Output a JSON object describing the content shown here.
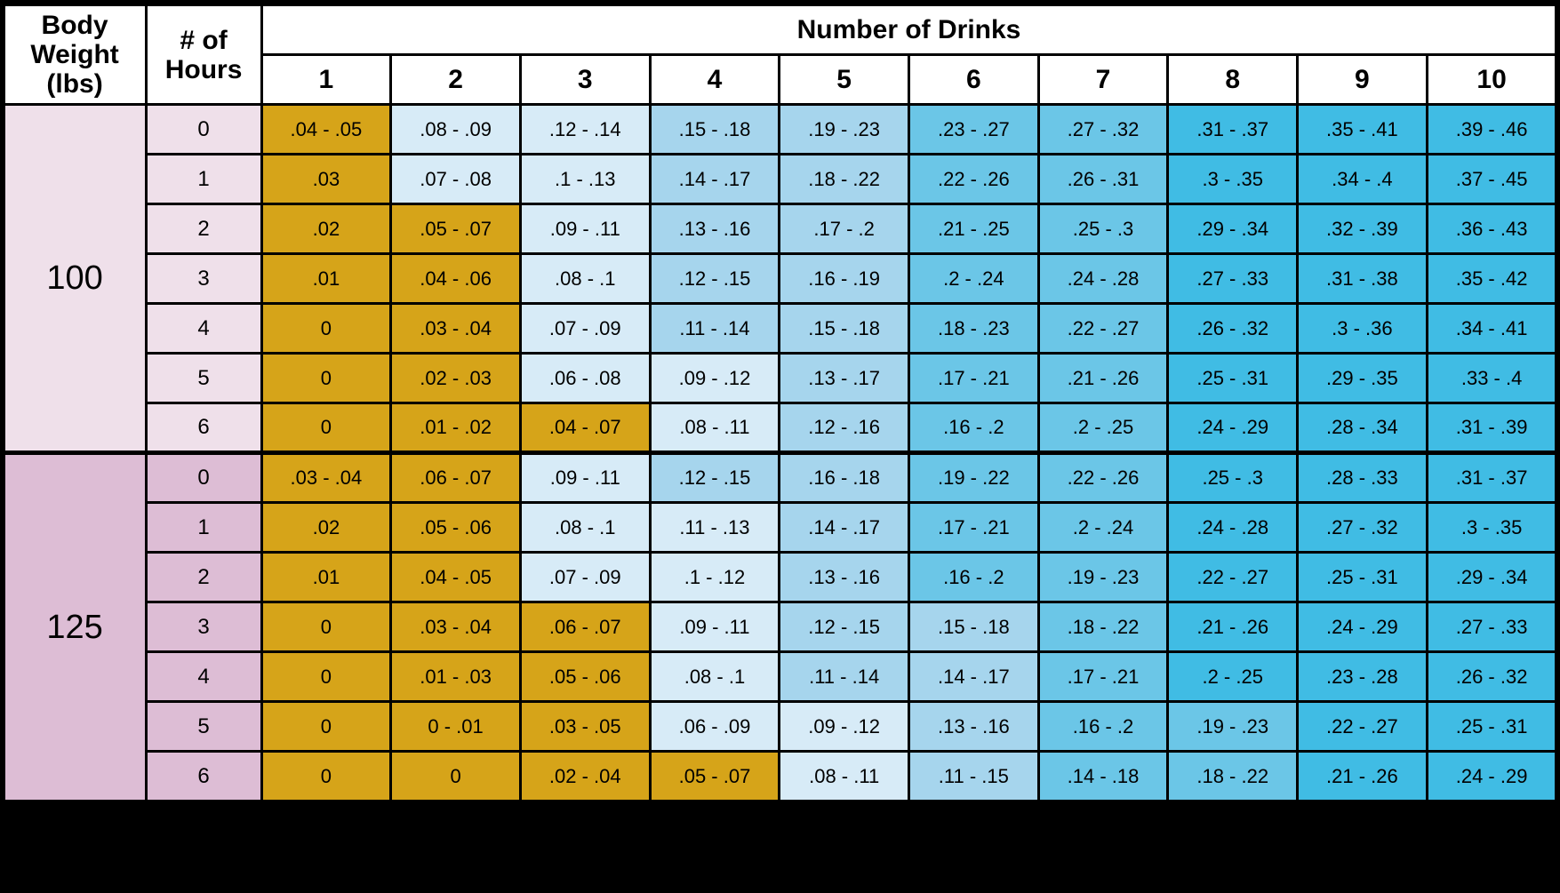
{
  "headers": {
    "body_weight": "Body\nWeight\n(lbs)",
    "hours": "# of\nHours",
    "drinks_title": "Number of Drinks",
    "drink_numbers": [
      "1",
      "2",
      "3",
      "4",
      "5",
      "6",
      "7",
      "8",
      "9",
      "10"
    ]
  },
  "colors": {
    "gold": "#d6a419",
    "blue1": "#d7ebf7",
    "blue2": "#a6d5ed",
    "blue3": "#6bc6e7",
    "blue4": "#40bce4",
    "pink1": "#efe0ea",
    "pink2": "#ddbdd5",
    "white": "#ffffff",
    "black": "#000000"
  },
  "groups": [
    {
      "weight": "100",
      "weight_bg_key": "pink1",
      "hours_bg_key": "pink1",
      "rows": [
        {
          "hours": "0",
          "cells": [
            {
              "v": ".04 - .05",
              "c": "gold"
            },
            {
              "v": ".08 - .09",
              "c": "blue1"
            },
            {
              "v": ".12 - .14",
              "c": "blue1"
            },
            {
              "v": ".15 - .18",
              "c": "blue2"
            },
            {
              "v": ".19 - .23",
              "c": "blue2"
            },
            {
              "v": ".23 - .27",
              "c": "blue3"
            },
            {
              "v": ".27 - .32",
              "c": "blue3"
            },
            {
              "v": ".31 - .37",
              "c": "blue4"
            },
            {
              "v": ".35 - .41",
              "c": "blue4"
            },
            {
              "v": ".39 - .46",
              "c": "blue4"
            }
          ]
        },
        {
          "hours": "1",
          "cells": [
            {
              "v": ".03",
              "c": "gold"
            },
            {
              "v": ".07 - .08",
              "c": "blue1"
            },
            {
              "v": ".1 - .13",
              "c": "blue1"
            },
            {
              "v": ".14 - .17",
              "c": "blue2"
            },
            {
              "v": ".18 - .22",
              "c": "blue2"
            },
            {
              "v": ".22 - .26",
              "c": "blue3"
            },
            {
              "v": ".26 - .31",
              "c": "blue3"
            },
            {
              "v": ".3 - .35",
              "c": "blue4"
            },
            {
              "v": ".34 - .4",
              "c": "blue4"
            },
            {
              "v": ".37 - .45",
              "c": "blue4"
            }
          ]
        },
        {
          "hours": "2",
          "cells": [
            {
              "v": ".02",
              "c": "gold"
            },
            {
              "v": ".05 - .07",
              "c": "gold"
            },
            {
              "v": ".09 - .11",
              "c": "blue1"
            },
            {
              "v": ".13 - .16",
              "c": "blue2"
            },
            {
              "v": ".17 - .2",
              "c": "blue2"
            },
            {
              "v": ".21 - .25",
              "c": "blue3"
            },
            {
              "v": ".25 - .3",
              "c": "blue3"
            },
            {
              "v": ".29 - .34",
              "c": "blue4"
            },
            {
              "v": ".32 - .39",
              "c": "blue4"
            },
            {
              "v": ".36 - .43",
              "c": "blue4"
            }
          ]
        },
        {
          "hours": "3",
          "cells": [
            {
              "v": ".01",
              "c": "gold"
            },
            {
              "v": ".04 - .06",
              "c": "gold"
            },
            {
              "v": ".08 - .1",
              "c": "blue1"
            },
            {
              "v": ".12 - .15",
              "c": "blue2"
            },
            {
              "v": ".16 - .19",
              "c": "blue2"
            },
            {
              "v": ".2 - .24",
              "c": "blue3"
            },
            {
              "v": ".24 - .28",
              "c": "blue3"
            },
            {
              "v": ".27 - .33",
              "c": "blue4"
            },
            {
              "v": ".31 - .38",
              "c": "blue4"
            },
            {
              "v": ".35 - .42",
              "c": "blue4"
            }
          ]
        },
        {
          "hours": "4",
          "cells": [
            {
              "v": "0",
              "c": "gold"
            },
            {
              "v": ".03 - .04",
              "c": "gold"
            },
            {
              "v": ".07 - .09",
              "c": "blue1"
            },
            {
              "v": ".11 - .14",
              "c": "blue2"
            },
            {
              "v": ".15 - .18",
              "c": "blue2"
            },
            {
              "v": ".18 - .23",
              "c": "blue3"
            },
            {
              "v": ".22 - .27",
              "c": "blue3"
            },
            {
              "v": ".26 - .32",
              "c": "blue4"
            },
            {
              "v": ".3 - .36",
              "c": "blue4"
            },
            {
              "v": ".34 - .41",
              "c": "blue4"
            }
          ]
        },
        {
          "hours": "5",
          "cells": [
            {
              "v": "0",
              "c": "gold"
            },
            {
              "v": ".02 - .03",
              "c": "gold"
            },
            {
              "v": ".06 - .08",
              "c": "blue1"
            },
            {
              "v": ".09 - .12",
              "c": "blue1"
            },
            {
              "v": ".13 - .17",
              "c": "blue2"
            },
            {
              "v": ".17 - .21",
              "c": "blue3"
            },
            {
              "v": ".21 - .26",
              "c": "blue3"
            },
            {
              "v": ".25 - .31",
              "c": "blue4"
            },
            {
              "v": ".29 - .35",
              "c": "blue4"
            },
            {
              "v": ".33 - .4",
              "c": "blue4"
            }
          ]
        },
        {
          "hours": "6",
          "cells": [
            {
              "v": "0",
              "c": "gold"
            },
            {
              "v": ".01 - .02",
              "c": "gold"
            },
            {
              "v": ".04 - .07",
              "c": "gold"
            },
            {
              "v": ".08 - .11",
              "c": "blue1"
            },
            {
              "v": ".12 - .16",
              "c": "blue2"
            },
            {
              "v": ".16 - .2",
              "c": "blue3"
            },
            {
              "v": ".2 - .25",
              "c": "blue3"
            },
            {
              "v": ".24 - .29",
              "c": "blue4"
            },
            {
              "v": ".28 - .34",
              "c": "blue4"
            },
            {
              "v": ".31 - .39",
              "c": "blue4"
            }
          ]
        }
      ]
    },
    {
      "weight": "125",
      "weight_bg_key": "pink2",
      "hours_bg_key": "pink2",
      "rows": [
        {
          "hours": "0",
          "cells": [
            {
              "v": ".03 - .04",
              "c": "gold"
            },
            {
              "v": ".06 - .07",
              "c": "gold"
            },
            {
              "v": ".09 - .11",
              "c": "blue1"
            },
            {
              "v": ".12 - .15",
              "c": "blue2"
            },
            {
              "v": ".16 - .18",
              "c": "blue2"
            },
            {
              "v": ".19 - .22",
              "c": "blue3"
            },
            {
              "v": ".22 - .26",
              "c": "blue3"
            },
            {
              "v": ".25 - .3",
              "c": "blue4"
            },
            {
              "v": ".28 - .33",
              "c": "blue4"
            },
            {
              "v": ".31 - .37",
              "c": "blue4"
            }
          ]
        },
        {
          "hours": "1",
          "cells": [
            {
              "v": ".02",
              "c": "gold"
            },
            {
              "v": ".05 - .06",
              "c": "gold"
            },
            {
              "v": ".08 - .1",
              "c": "blue1"
            },
            {
              "v": ".11 - .13",
              "c": "blue1"
            },
            {
              "v": ".14 - .17",
              "c": "blue2"
            },
            {
              "v": ".17 - .21",
              "c": "blue3"
            },
            {
              "v": ".2 - .24",
              "c": "blue3"
            },
            {
              "v": ".24 - .28",
              "c": "blue4"
            },
            {
              "v": ".27 - .32",
              "c": "blue4"
            },
            {
              "v": ".3 - .35",
              "c": "blue4"
            }
          ]
        },
        {
          "hours": "2",
          "cells": [
            {
              "v": ".01",
              "c": "gold"
            },
            {
              "v": ".04 - .05",
              "c": "gold"
            },
            {
              "v": ".07 - .09",
              "c": "blue1"
            },
            {
              "v": ".1 - .12",
              "c": "blue1"
            },
            {
              "v": ".13 - .16",
              "c": "blue2"
            },
            {
              "v": ".16 - .2",
              "c": "blue3"
            },
            {
              "v": ".19 - .23",
              "c": "blue3"
            },
            {
              "v": ".22 - .27",
              "c": "blue4"
            },
            {
              "v": ".25 - .31",
              "c": "blue4"
            },
            {
              "v": ".29 - .34",
              "c": "blue4"
            }
          ]
        },
        {
          "hours": "3",
          "cells": [
            {
              "v": "0",
              "c": "gold"
            },
            {
              "v": ".03 - .04",
              "c": "gold"
            },
            {
              "v": ".06 - .07",
              "c": "gold"
            },
            {
              "v": ".09 - .11",
              "c": "blue1"
            },
            {
              "v": ".12 - .15",
              "c": "blue2"
            },
            {
              "v": ".15 - .18",
              "c": "blue2"
            },
            {
              "v": ".18 - .22",
              "c": "blue3"
            },
            {
              "v": ".21 - .26",
              "c": "blue4"
            },
            {
              "v": ".24 - .29",
              "c": "blue4"
            },
            {
              "v": ".27 - .33",
              "c": "blue4"
            }
          ]
        },
        {
          "hours": "4",
          "cells": [
            {
              "v": "0",
              "c": "gold"
            },
            {
              "v": ".01 - .03",
              "c": "gold"
            },
            {
              "v": ".05 - .06",
              "c": "gold"
            },
            {
              "v": ".08 - .1",
              "c": "blue1"
            },
            {
              "v": ".11 - .14",
              "c": "blue2"
            },
            {
              "v": ".14 - .17",
              "c": "blue2"
            },
            {
              "v": ".17 - .21",
              "c": "blue3"
            },
            {
              "v": ".2 - .25",
              "c": "blue4"
            },
            {
              "v": ".23 - .28",
              "c": "blue4"
            },
            {
              "v": ".26 - .32",
              "c": "blue4"
            }
          ]
        },
        {
          "hours": "5",
          "cells": [
            {
              "v": "0",
              "c": "gold"
            },
            {
              "v": "0 - .01",
              "c": "gold"
            },
            {
              "v": ".03 - .05",
              "c": "gold"
            },
            {
              "v": ".06 - .09",
              "c": "blue1"
            },
            {
              "v": ".09 - .12",
              "c": "blue1"
            },
            {
              "v": ".13 - .16",
              "c": "blue2"
            },
            {
              "v": ".16 - .2",
              "c": "blue3"
            },
            {
              "v": ".19 - .23",
              "c": "blue3"
            },
            {
              "v": ".22 - .27",
              "c": "blue4"
            },
            {
              "v": ".25 - .31",
              "c": "blue4"
            }
          ]
        },
        {
          "hours": "6",
          "cells": [
            {
              "v": "0",
              "c": "gold"
            },
            {
              "v": "0",
              "c": "gold"
            },
            {
              "v": ".02 - .04",
              "c": "gold"
            },
            {
              "v": ".05 - .07",
              "c": "gold"
            },
            {
              "v": ".08 - .11",
              "c": "blue1"
            },
            {
              "v": ".11 - .15",
              "c": "blue2"
            },
            {
              "v": ".14 - .18",
              "c": "blue3"
            },
            {
              "v": ".18 - .22",
              "c": "blue3"
            },
            {
              "v": ".21 - .26",
              "c": "blue4"
            },
            {
              "v": ".24 - .29",
              "c": "blue4"
            }
          ]
        }
      ]
    }
  ]
}
